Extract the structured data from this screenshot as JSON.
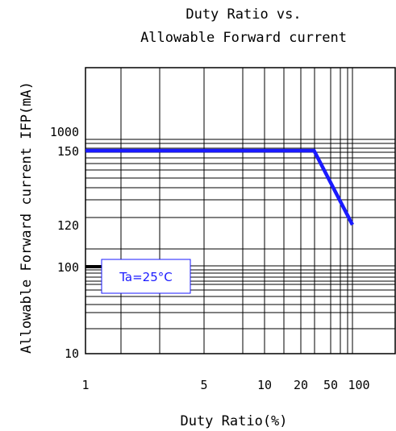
{
  "chart_data": {
    "type": "line",
    "title": [
      "Duty Ratio vs.",
      "Allowable Forward current"
    ],
    "xlabel": "Duty Ratio(%)",
    "ylabel": "Allowable Forward current IFP(mA)",
    "xscale": "log",
    "yscale": "log",
    "xlim": [
      1,
      100
    ],
    "xticks": [
      "1",
      "5",
      "10",
      "20",
      "50",
      "100"
    ],
    "yticks": [
      "10",
      "100",
      "120",
      "150",
      "1000"
    ],
    "grid": true,
    "series": [
      {
        "color": "#1a1aff",
        "points": [
          [
            1,
            150
          ],
          [
            30,
            150
          ],
          [
            100,
            120
          ]
        ]
      }
    ],
    "marker": {
      "label": "100",
      "color": "#000000"
    },
    "annotation": {
      "text": "Ta=25°C",
      "color": "#1a1aff"
    }
  }
}
